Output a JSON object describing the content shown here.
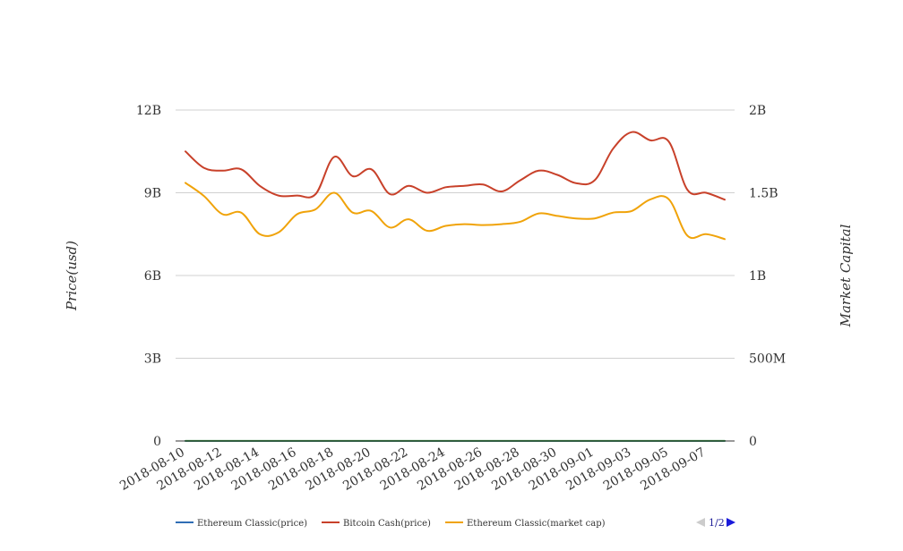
{
  "chart_data": {
    "type": "line",
    "x": [
      "2018-08-10",
      "2018-08-11",
      "2018-08-12",
      "2018-08-13",
      "2018-08-14",
      "2018-08-15",
      "2018-08-16",
      "2018-08-17",
      "2018-08-18",
      "2018-08-19",
      "2018-08-20",
      "2018-08-21",
      "2018-08-22",
      "2018-08-23",
      "2018-08-24",
      "2018-08-25",
      "2018-08-26",
      "2018-08-27",
      "2018-08-28",
      "2018-08-29",
      "2018-08-30",
      "2018-08-31",
      "2018-09-01",
      "2018-09-02",
      "2018-09-03",
      "2018-09-04",
      "2018-09-05",
      "2018-09-06",
      "2018-09-07",
      "2018-09-08"
    ],
    "x_tick_labels": [
      "2018-08-10",
      "2018-08-12",
      "2018-08-14",
      "2018-08-16",
      "2018-08-18",
      "2018-08-20",
      "2018-08-22",
      "2018-08-24",
      "2018-08-26",
      "2018-08-28",
      "2018-08-30",
      "2018-09-01",
      "2018-09-03",
      "2018-09-05",
      "2018-09-07"
    ],
    "ylabel_left": "Price(usd)",
    "ylabel_right": "Market Capital",
    "ylim_left": [
      0,
      12000000000
    ],
    "ylim_right": [
      0,
      2000000000
    ],
    "y_ticks_left": [
      "0",
      "3B",
      "6B",
      "9B",
      "12B"
    ],
    "y_ticks_right": [
      "0",
      "500M",
      "1B",
      "1.5B",
      "2B"
    ],
    "series": [
      {
        "name": "Ethereum Classic(price)",
        "axis": "left",
        "color": "#2f6db5",
        "values": [
          15,
          15,
          15,
          15,
          15,
          15,
          15,
          15,
          15,
          15,
          15,
          15,
          15,
          15,
          15,
          15,
          15,
          15,
          15,
          15,
          15,
          15,
          15,
          15,
          15,
          15,
          15,
          15,
          15,
          15
        ]
      },
      {
        "name": "Bitcoin Cash(price)",
        "axis": "left",
        "color": "#c8412a",
        "values": [
          10500000000,
          9900000000,
          9800000000,
          9850000000,
          9250000000,
          8900000000,
          8900000000,
          8950000000,
          10300000000,
          9600000000,
          9850000000,
          8950000000,
          9250000000,
          9000000000,
          9200000000,
          9250000000,
          9300000000,
          9050000000,
          9450000000,
          9800000000,
          9650000000,
          9350000000,
          9450000000,
          10600000000,
          11200000000,
          10900000000,
          10850000000,
          9100000000,
          9000000000,
          8750000000
        ]
      },
      {
        "name": "Ethereum Classic(market cap)",
        "axis": "right",
        "color": "#f0a30a",
        "values": [
          1560000000,
          1480000000,
          1370000000,
          1380000000,
          1250000000,
          1260000000,
          1370000000,
          1400000000,
          1500000000,
          1380000000,
          1390000000,
          1290000000,
          1340000000,
          1270000000,
          1300000000,
          1310000000,
          1305000000,
          1310000000,
          1325000000,
          1375000000,
          1360000000,
          1345000000,
          1345000000,
          1380000000,
          1390000000,
          1460000000,
          1460000000,
          1240000000,
          1250000000,
          1220000000
        ]
      },
      {
        "name": "",
        "axis": "right",
        "color": "#2e8b3a",
        "values": [
          500000,
          500000,
          500000,
          500000,
          500000,
          500000,
          500000,
          500000,
          500000,
          500000,
          500000,
          500000,
          500000,
          500000,
          500000,
          500000,
          500000,
          500000,
          500000,
          500000,
          500000,
          500000,
          500000,
          500000,
          500000,
          500000,
          500000,
          500000,
          500000,
          500000
        ]
      }
    ],
    "grid": true,
    "legend_position": "bottom-left",
    "legend_page": "1/2"
  }
}
